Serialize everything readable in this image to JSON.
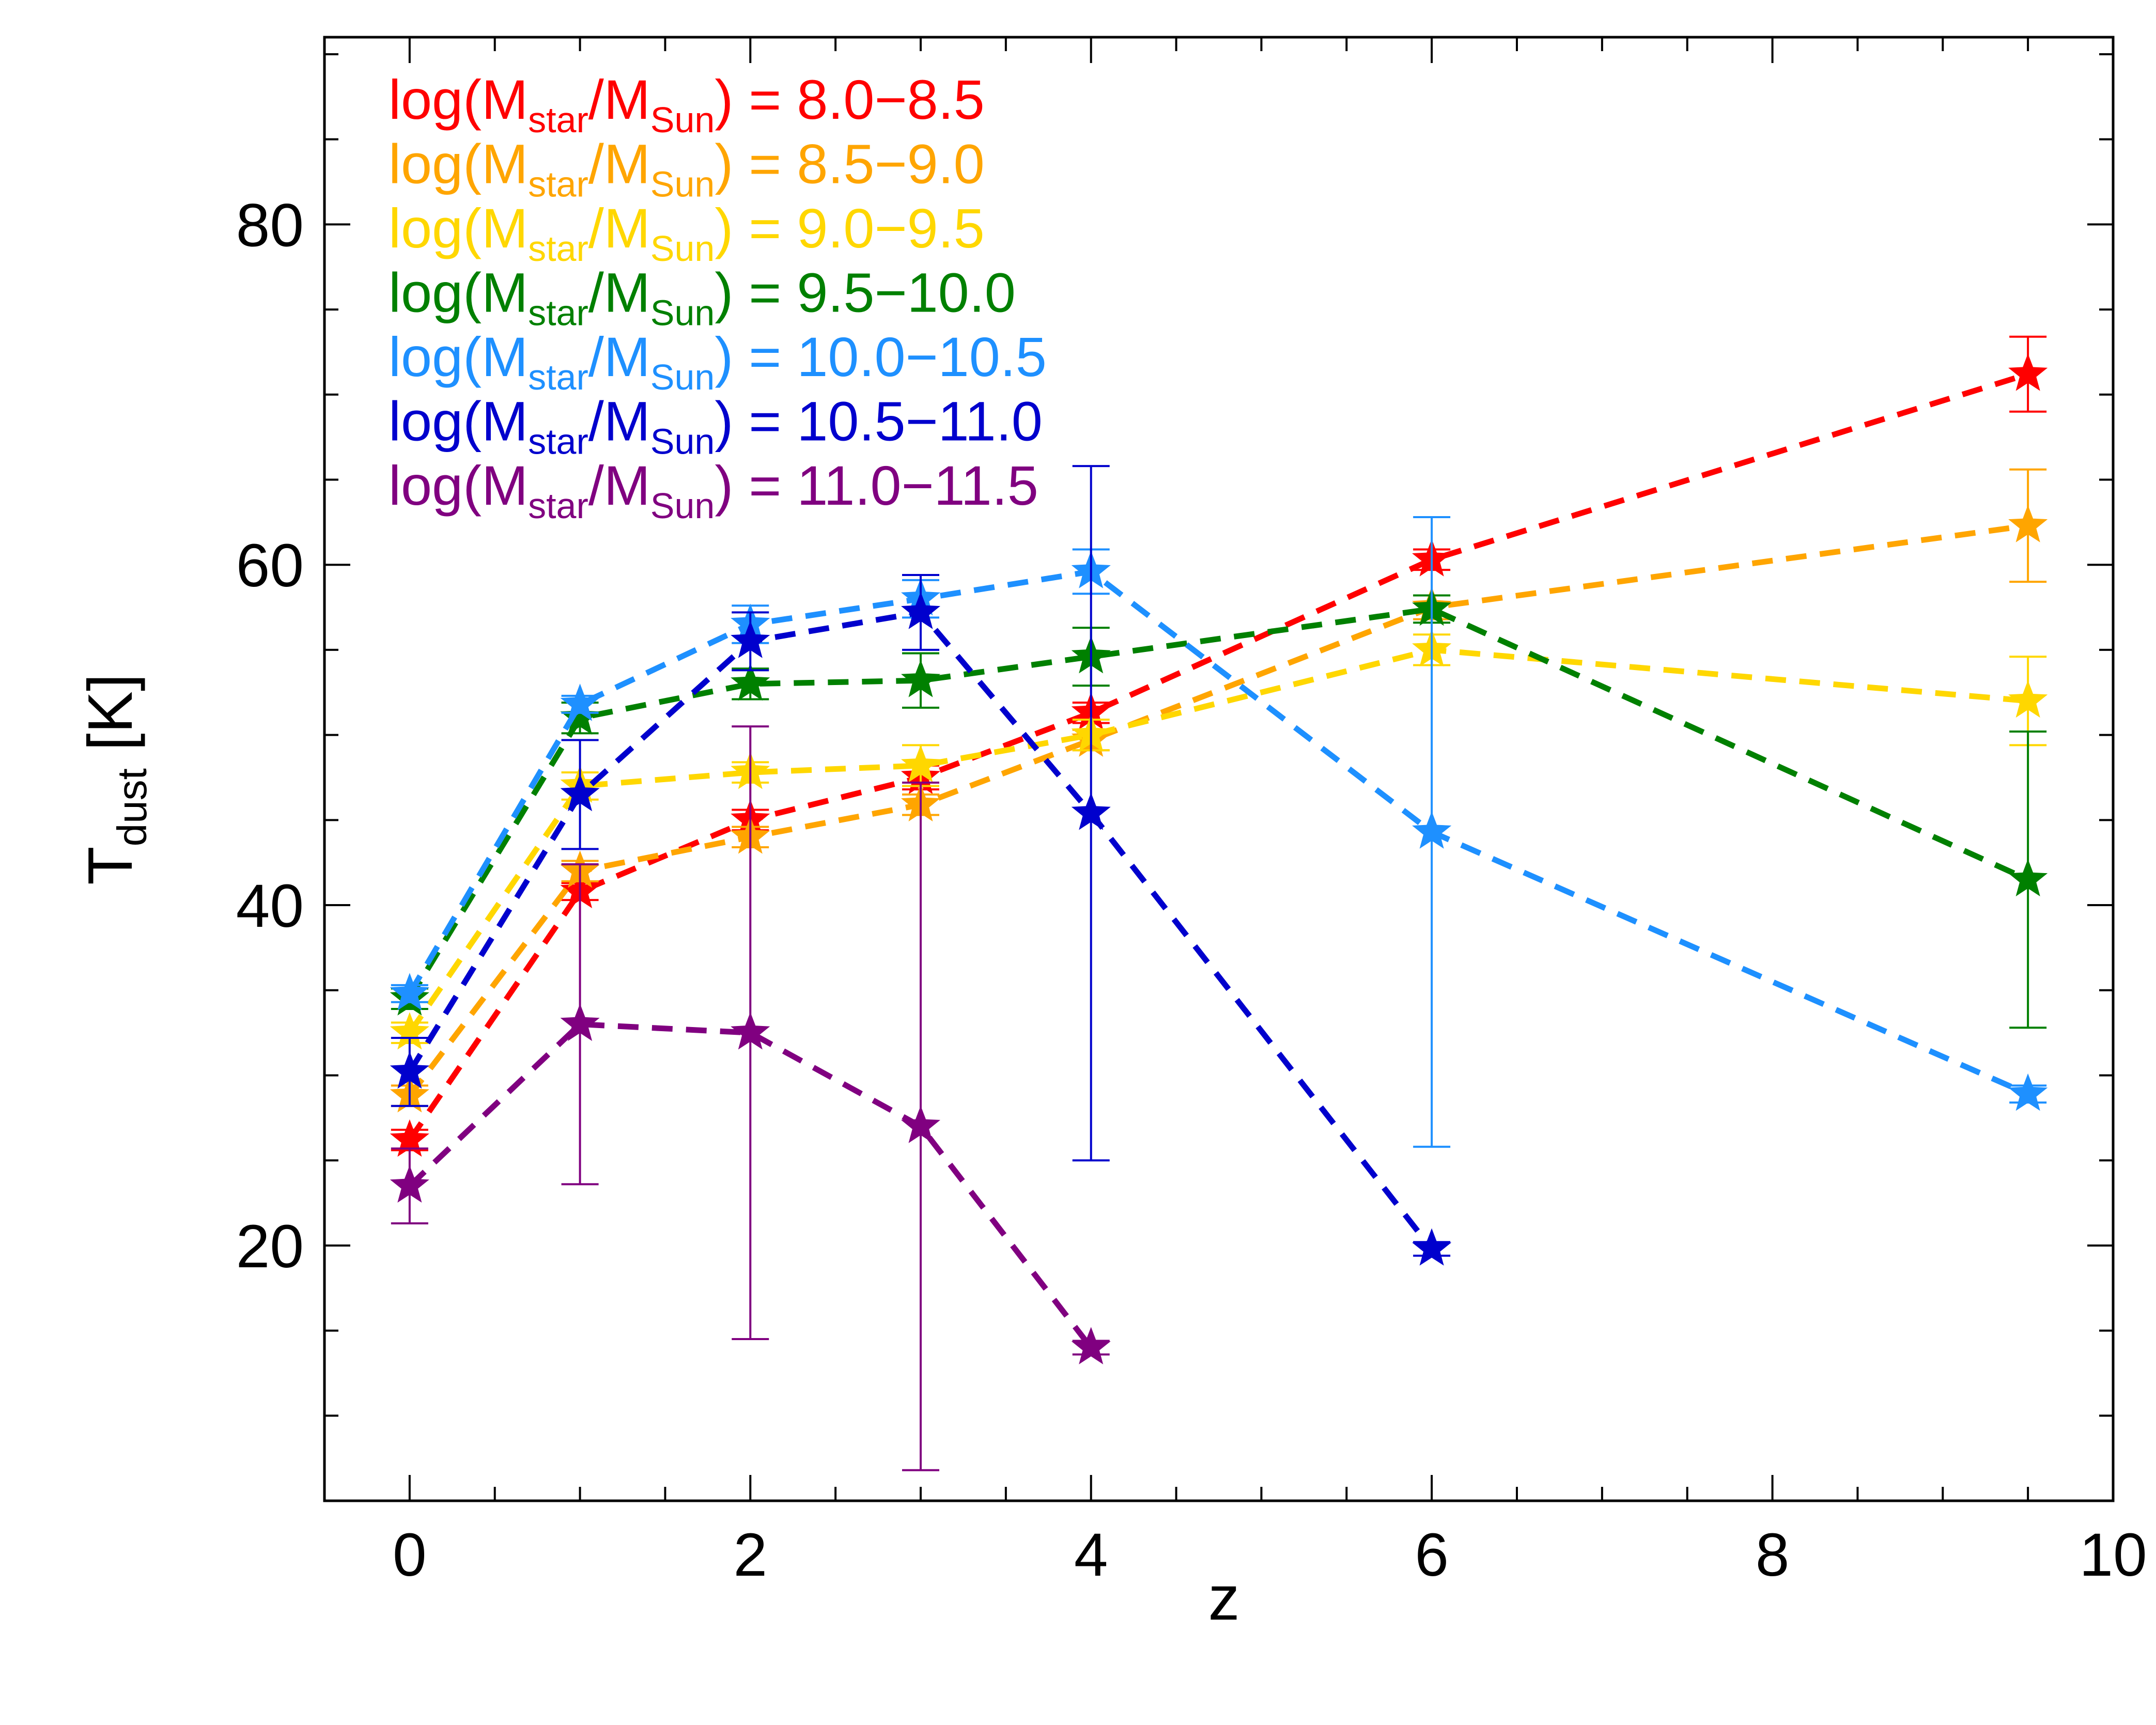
{
  "chart_data": {
    "type": "line",
    "title": "",
    "xlabel": "z",
    "ylabel_main": "T",
    "ylabel_sub": "dust",
    "ylabel_unit": " [K]",
    "xlim": [
      -0.5,
      10
    ],
    "ylim": [
      5,
      91
    ],
    "x_major_ticks": [
      0,
      2,
      4,
      6,
      8,
      10
    ],
    "x_tick_labels": [
      "0",
      "2",
      "4",
      "6",
      "8",
      "10"
    ],
    "x_minor_step": 0.5,
    "y_major_ticks": [
      20,
      40,
      60,
      80
    ],
    "y_tick_labels": [
      "20",
      "40",
      "60",
      "80"
    ],
    "y_minor_step": 5,
    "legend_position": "top-left",
    "legend_prefix": "log(M",
    "legend_sub1": "star",
    "legend_mid": "/M",
    "legend_sub2": "Sun",
    "legend_suffix": ") = ",
    "series": [
      {
        "name": "8.0−8.5",
        "color": "#ff0000",
        "x": [
          0,
          1,
          2,
          3,
          4,
          6,
          9.5
        ],
        "y": [
          26.2,
          40.8,
          45.0,
          47.5,
          51.3,
          60.3,
          71.2
        ],
        "err": [
          0.6,
          0.5,
          0.6,
          0.7,
          0.6,
          0.6,
          2.2
        ]
      },
      {
        "name": "8.5−9.0",
        "color": "#ffa500",
        "x": [
          0,
          1,
          2,
          3,
          4,
          6,
          9.5
        ],
        "y": [
          28.8,
          42.0,
          44.0,
          45.9,
          49.7,
          57.5,
          62.3
        ],
        "err": [
          0.6,
          0.6,
          0.6,
          0.6,
          0.6,
          0.7,
          3.3
        ]
      },
      {
        "name": "9.0−9.5",
        "color": "#ffd700",
        "x": [
          0,
          1,
          2,
          3,
          4,
          6,
          9.5
        ],
        "y": [
          32.5,
          47.0,
          47.8,
          48.2,
          50.0,
          55.0,
          52.0
        ],
        "err": [
          0.6,
          0.8,
          0.6,
          1.2,
          0.9,
          0.9,
          2.6
        ]
      },
      {
        "name": "9.5−10.0",
        "color": "#008000",
        "x": [
          0,
          1,
          2,
          3,
          4,
          6,
          9.5
        ],
        "y": [
          34.5,
          51.0,
          53.0,
          53.2,
          54.6,
          57.4,
          41.5
        ],
        "err": [
          0.6,
          0.9,
          0.9,
          1.6,
          1.7,
          0.8,
          8.7
        ]
      },
      {
        "name": "10.0−10.5",
        "color": "#1e90ff",
        "x": [
          0,
          1,
          2,
          3,
          4,
          6,
          9.5
        ],
        "y": [
          34.8,
          51.8,
          56.5,
          58.0,
          59.6,
          44.3,
          28.9
        ],
        "err": [
          0.5,
          0.5,
          1.1,
          1.1,
          1.3,
          18.5,
          0.5
        ]
      },
      {
        "name": "10.5−11.0",
        "color": "#0000cd",
        "x": [
          0,
          1,
          2,
          3,
          4,
          6
        ],
        "y": [
          30.2,
          46.5,
          55.5,
          57.2,
          45.4,
          19.8
        ],
        "err": [
          2.0,
          3.2,
          1.7,
          2.2,
          20.4,
          0.4
        ]
      },
      {
        "name": "11.0−11.5",
        "color": "#800080",
        "x": [
          0,
          1,
          2,
          3,
          4
        ],
        "y": [
          23.5,
          33.0,
          32.5,
          27.0,
          14.0
        ],
        "err": [
          2.2,
          9.4,
          18.0,
          20.2,
          0.4
        ]
      }
    ]
  }
}
